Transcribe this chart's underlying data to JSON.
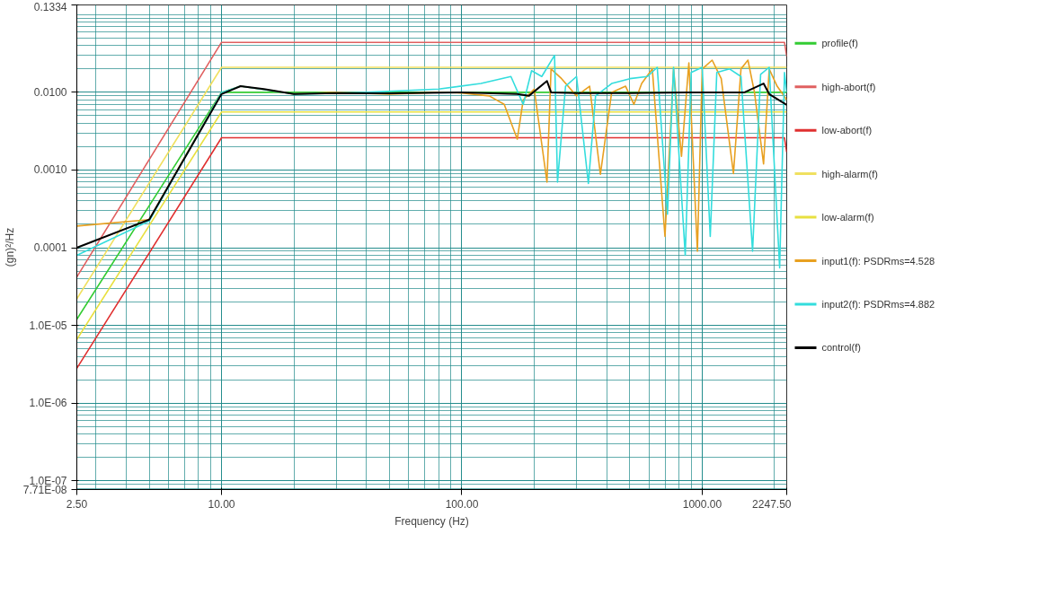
{
  "chart_data": {
    "type": "line",
    "xlabel": "Frequency (Hz)",
    "ylabel": "(gn)²/Hz",
    "log": "xy",
    "grid": true,
    "legend": "right",
    "line_style": "solid",
    "marker": "none",
    "xlim": [
      2.5,
      2247.5
    ],
    "xticks": [
      {
        "value": 2.5,
        "label": "2.50"
      },
      {
        "value": 10,
        "label": "10.00"
      },
      {
        "value": 100,
        "label": "100.00"
      },
      {
        "value": 1000,
        "label": "1000.00"
      },
      {
        "value": 2247.5,
        "label": "2247.50"
      }
    ],
    "ylim": [
      7.71e-08,
      0.1334
    ],
    "yticks": [
      {
        "value": 0.1334,
        "label": "0.1334"
      },
      {
        "value": 0.01,
        "label": "0.0100"
      },
      {
        "value": 0.001,
        "label": "0.0010"
      },
      {
        "value": 0.0001,
        "label": "0.0001"
      },
      {
        "value": 1e-05,
        "label": "1.0E-05"
      },
      {
        "value": 1e-06,
        "label": "1.0E-06"
      },
      {
        "value": 1e-07,
        "label": "1.0E-07"
      },
      {
        "value": 7.71e-08,
        "label": "7.71E-08"
      }
    ],
    "series": [
      {
        "name": "profile(f)",
        "color": "#33cc33",
        "x": [
          2.5,
          10,
          2247.5
        ],
        "values": [
          1.2e-05,
          0.01,
          0.01
        ]
      },
      {
        "name": "high-abort(f)",
        "color": "#e06060",
        "x": [
          2.5,
          10,
          2200,
          2247.5
        ],
        "values": [
          4.2e-05,
          0.044,
          0.044,
          0.029
        ]
      },
      {
        "name": "low-abort(f)",
        "color": "#e03030",
        "x": [
          2.5,
          10,
          2200,
          2247.5
        ],
        "values": [
          2.8e-06,
          0.0026,
          0.0026,
          0.0017
        ]
      },
      {
        "name": "high-alarm(f)",
        "color": "#f0e060",
        "x": [
          2.5,
          10,
          2247.5
        ],
        "values": [
          2.2e-05,
          0.021,
          0.021
        ]
      },
      {
        "name": "low-alarm(f)",
        "color": "#e8e040",
        "x": [
          2.5,
          10,
          2247.5
        ],
        "values": [
          6.6e-06,
          0.0056,
          0.0056
        ]
      },
      {
        "name": "input1(f): PSDRms=4.528",
        "color": "#e8a020",
        "x": [
          2.5,
          5,
          10,
          12,
          20,
          30,
          50,
          80,
          100,
          130,
          150,
          170,
          180,
          200,
          226,
          235,
          260,
          300,
          340,
          377,
          420,
          480,
          520,
          560,
          620,
          700,
          760,
          820,
          880,
          955,
          1000,
          1100,
          1200,
          1349,
          1450,
          1550,
          1650,
          1800,
          1900,
          2050,
          2247.5
        ],
        "values": [
          0.00019,
          0.00023,
          0.01,
          0.012,
          0.0095,
          0.01,
          0.0095,
          0.01,
          0.0098,
          0.009,
          0.007,
          0.0025,
          0.008,
          0.011,
          0.0007,
          0.02,
          0.015,
          0.009,
          0.012,
          0.00088,
          0.01,
          0.012,
          0.007,
          0.013,
          0.02,
          0.00014,
          0.02,
          0.0015,
          0.024,
          9e-05,
          0.02,
          0.026,
          0.015,
          0.0009,
          0.02,
          0.026,
          0.01,
          0.0012,
          0.02,
          0.012,
          0.008
        ]
      },
      {
        "name": "input2(f): PSDRms=4.882",
        "color": "#33dddd",
        "x": [
          2.5,
          5,
          10,
          12,
          20,
          40,
          80,
          120,
          160,
          180,
          195,
          215,
          243,
          250,
          270,
          300,
          336,
          360,
          420,
          500,
          592,
          650,
          717,
          760,
          850,
          900,
          1000,
          1080,
          1150,
          1300,
          1450,
          1620,
          1750,
          1900,
          2100,
          2200,
          2247.5
        ],
        "values": [
          8e-05,
          0.00022,
          0.01,
          0.012,
          0.0095,
          0.01,
          0.011,
          0.013,
          0.016,
          0.007,
          0.019,
          0.016,
          0.03,
          0.0007,
          0.012,
          0.016,
          0.00067,
          0.009,
          0.013,
          0.015,
          0.016,
          0.021,
          0.00027,
          0.021,
          8e-05,
          0.018,
          0.021,
          0.00014,
          0.018,
          0.02,
          0.016,
          9e-05,
          0.017,
          0.021,
          5.5e-05,
          0.018,
          0.01
        ]
      },
      {
        "name": "control(f)",
        "color": "#000000",
        "x": [
          2.5,
          5,
          10,
          12,
          15,
          20,
          30,
          50,
          100,
          170,
          190,
          226,
          235,
          300,
          500,
          1000,
          1500,
          1800,
          1900,
          2247.5
        ],
        "values": [
          0.0001,
          0.00023,
          0.0095,
          0.012,
          0.011,
          0.0095,
          0.0098,
          0.0097,
          0.01,
          0.0095,
          0.009,
          0.014,
          0.01,
          0.0098,
          0.0098,
          0.01,
          0.01,
          0.013,
          0.0095,
          0.0069
        ]
      }
    ]
  }
}
